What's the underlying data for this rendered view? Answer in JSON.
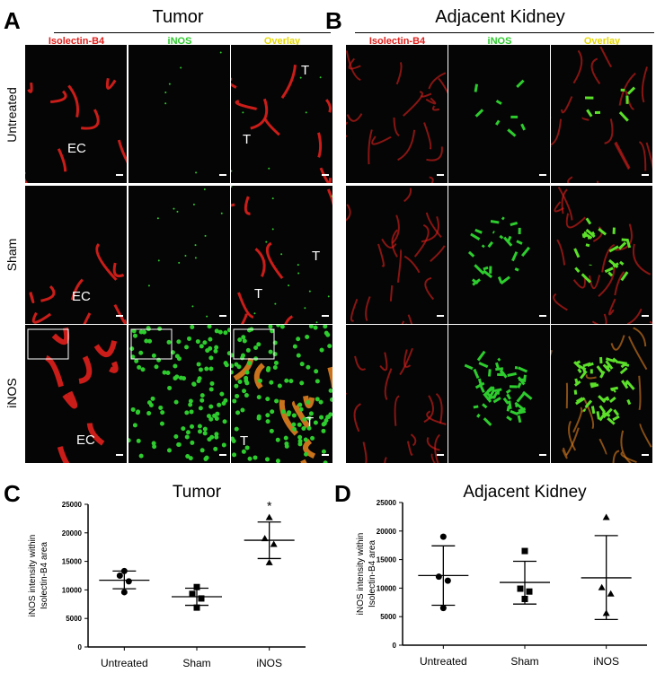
{
  "panelA": {
    "letter": "A",
    "title": "Tumor",
    "columns": [
      "Isolectin-B4",
      "iNOS",
      "Overlay"
    ],
    "annotations": {
      "ec": "EC",
      "t": "T"
    }
  },
  "panelB": {
    "letter": "B",
    "title": "Adjacent Kidney",
    "columns": [
      "Isolectin-B4",
      "iNOS",
      "Overlay"
    ]
  },
  "rows": [
    "Untreated",
    "Sham",
    "iNOS"
  ],
  "colors": {
    "red": "#e0201c",
    "green": "#2ecc2e",
    "yellow": "#e6d800",
    "background": "#050505"
  },
  "chart_data": [
    {
      "letter": "C",
      "type": "scatter",
      "title": "Tumor",
      "ylabel": "iNOS intensity within Isolectin-B4 area",
      "ylim": [
        0,
        25000
      ],
      "yticks": [
        "0",
        "5000",
        "10000",
        "15000",
        "20000",
        "25000"
      ],
      "categories": [
        "Untreated",
        "Sham",
        "iNOS"
      ],
      "markers": [
        "circle",
        "square",
        "triangle"
      ],
      "annotation": "*",
      "series": [
        {
          "points": [
            13300,
            12500,
            11500,
            9600
          ],
          "mean": 11700,
          "err": [
            10200,
            13300
          ]
        },
        {
          "points": [
            10500,
            9300,
            8500,
            6900
          ],
          "mean": 8800,
          "err": [
            7300,
            10300
          ]
        },
        {
          "points": [
            22700,
            19000,
            18000,
            14800
          ],
          "mean": 18700,
          "err": [
            15500,
            21900
          ]
        }
      ]
    },
    {
      "letter": "D",
      "type": "scatter",
      "title": "Adjacent Kidney",
      "ylabel": "iNOS intensity within Isolectin-B4 area",
      "ylim": [
        0,
        25000
      ],
      "yticks": [
        "0",
        "5000",
        "10000",
        "15000",
        "20000",
        "25000"
      ],
      "categories": [
        "Untreated",
        "Sham",
        "iNOS"
      ],
      "markers": [
        "circle",
        "square",
        "triangle"
      ],
      "series": [
        {
          "points": [
            19000,
            12000,
            11300,
            6500
          ],
          "mean": 12200,
          "err": [
            7000,
            17400
          ]
        },
        {
          "points": [
            16500,
            9900,
            9400,
            8100
          ],
          "mean": 11000,
          "err": [
            7200,
            14700
          ]
        },
        {
          "points": [
            22400,
            10100,
            9000,
            5600
          ],
          "mean": 11800,
          "err": [
            4500,
            19200
          ]
        }
      ]
    }
  ]
}
